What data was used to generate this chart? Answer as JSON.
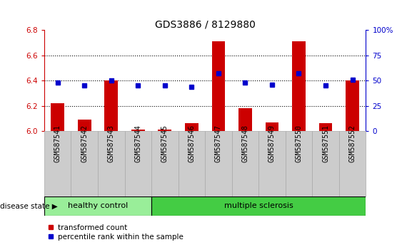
{
  "title": "GDS3886 / 8129880",
  "samples": [
    "GSM587541",
    "GSM587542",
    "GSM587543",
    "GSM587544",
    "GSM587545",
    "GSM587546",
    "GSM587547",
    "GSM587548",
    "GSM587549",
    "GSM587550",
    "GSM587551",
    "GSM587552"
  ],
  "red_values": [
    6.22,
    6.09,
    6.4,
    6.01,
    6.01,
    6.06,
    6.71,
    6.18,
    6.07,
    6.71,
    6.06,
    6.4
  ],
  "blue_percentiles": [
    48,
    45,
    50,
    45,
    45,
    44,
    57,
    48,
    46,
    57,
    45,
    51
  ],
  "ylim_left": [
    6.0,
    6.8
  ],
  "ylim_right": [
    0,
    100
  ],
  "yticks_left": [
    6.0,
    6.2,
    6.4,
    6.6,
    6.8
  ],
  "yticks_right": [
    0,
    25,
    50,
    75,
    100
  ],
  "ytick_labels_right": [
    "0",
    "25",
    "50",
    "75",
    "100%"
  ],
  "bar_color": "#cc0000",
  "dot_color": "#0000cc",
  "bar_width": 0.5,
  "healthy_count": 4,
  "multiple_sclerosis_count": 8,
  "healthy_label": "healthy control",
  "ms_label": "multiple sclerosis",
  "disease_label": "disease state",
  "legend_red": "transformed count",
  "legend_blue": "percentile rank within the sample",
  "healthy_color": "#99ee99",
  "ms_color": "#44cc44",
  "sample_box_color": "#cccccc",
  "bg_color": "#ffffff",
  "title_fontsize": 10,
  "tick_fontsize": 7.5,
  "label_fontsize": 8,
  "grid_lines": [
    6.2,
    6.4,
    6.6
  ]
}
